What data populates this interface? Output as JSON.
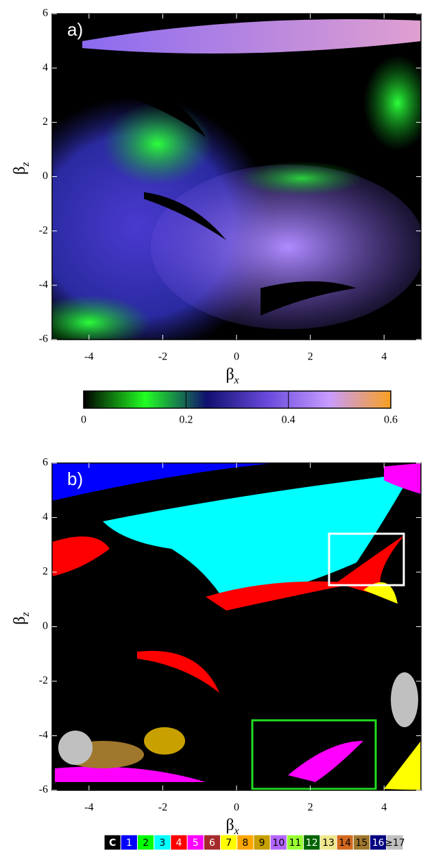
{
  "chart_data": [
    {
      "type": "image",
      "panel_label": "a)",
      "xlabel": {
        "base": "β",
        "sub": "x"
      },
      "ylabel": {
        "base": "β",
        "sub": "z"
      },
      "xlim": [
        -5,
        5
      ],
      "ylim": [
        -6,
        6
      ],
      "xticks": [
        -4,
        -2,
        0,
        2,
        4
      ],
      "yticks": [
        -6,
        -4,
        -2,
        0,
        2,
        4,
        6
      ],
      "colorbar": {
        "lim": [
          0,
          0.6
        ],
        "ticks": [
          0,
          0.2,
          0.4,
          0.6
        ],
        "colors": [
          "#000000",
          "#22ff22",
          "#101070",
          "#6a4adc",
          "#c89cff",
          "#f7a020"
        ]
      }
    },
    {
      "type": "image",
      "panel_label": "b)",
      "xlabel": {
        "base": "β",
        "sub": "x"
      },
      "ylabel": {
        "base": "β",
        "sub": "z"
      },
      "xlim": [
        -5,
        5
      ],
      "ylim": [
        -6,
        6
      ],
      "xticks": [
        -4,
        -2,
        0,
        2,
        4
      ],
      "yticks": [
        -6,
        -4,
        -2,
        0,
        2,
        4,
        6
      ],
      "legend": {
        "labels": [
          "C",
          "1",
          "2",
          "3",
          "4",
          "5",
          "6",
          "7",
          "8",
          "9",
          "10",
          "11",
          "12",
          "13",
          "14",
          "15",
          "16",
          "≥17"
        ],
        "colors": [
          "#000000",
          "#0000ff",
          "#00ff00",
          "#00ffff",
          "#ff0000",
          "#ff00ff",
          "#a52a2a",
          "#ffff00",
          "#ffa500",
          "#c8a000",
          "#b366ff",
          "#99ff33",
          "#006400",
          "#f0e68c",
          "#d2691e",
          "#a0782d",
          "#000080",
          "#c0c0c0"
        ]
      }
    }
  ]
}
